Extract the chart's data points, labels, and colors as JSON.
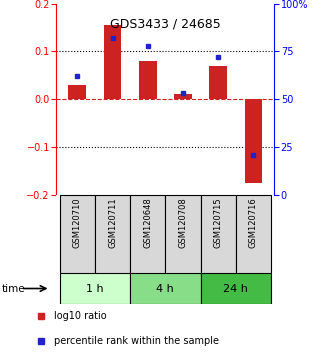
{
  "title": "GDS3433 / 24685",
  "samples": [
    "GSM120710",
    "GSM120711",
    "GSM120648",
    "GSM120708",
    "GSM120715",
    "GSM120716"
  ],
  "log10_ratio": [
    0.03,
    0.155,
    0.08,
    0.01,
    0.07,
    -0.175
  ],
  "percentile_rank": [
    62,
    82,
    78,
    53,
    72,
    21
  ],
  "ylim_left": [
    -0.2,
    0.2
  ],
  "ylim_right": [
    0,
    100
  ],
  "yticks_left": [
    -0.2,
    -0.1,
    0.0,
    0.1,
    0.2
  ],
  "yticks_right": [
    0,
    25,
    50,
    75,
    100
  ],
  "ytick_labels_right": [
    "0",
    "25",
    "50",
    "75",
    "100%"
  ],
  "hlines_dotted": [
    0.1,
    -0.1
  ],
  "hline_dashed": 0.0,
  "bar_color": "#cc2222",
  "square_color": "#2222cc",
  "time_groups": [
    {
      "label": "1 h",
      "color": "#ccffcc"
    },
    {
      "label": "4 h",
      "color": "#88dd88"
    },
    {
      "label": "24 h",
      "color": "#44bb44"
    }
  ],
  "legend_red_label": "log10 ratio",
  "legend_blue_label": "percentile rank within the sample",
  "time_label": "time",
  "bg_color": "#d8d8d8",
  "bar_width": 0.5,
  "title_fontsize": 9,
  "tick_fontsize": 7,
  "sample_fontsize": 6,
  "legend_fontsize": 7,
  "time_fontsize": 7.5,
  "group_fontsize": 8
}
